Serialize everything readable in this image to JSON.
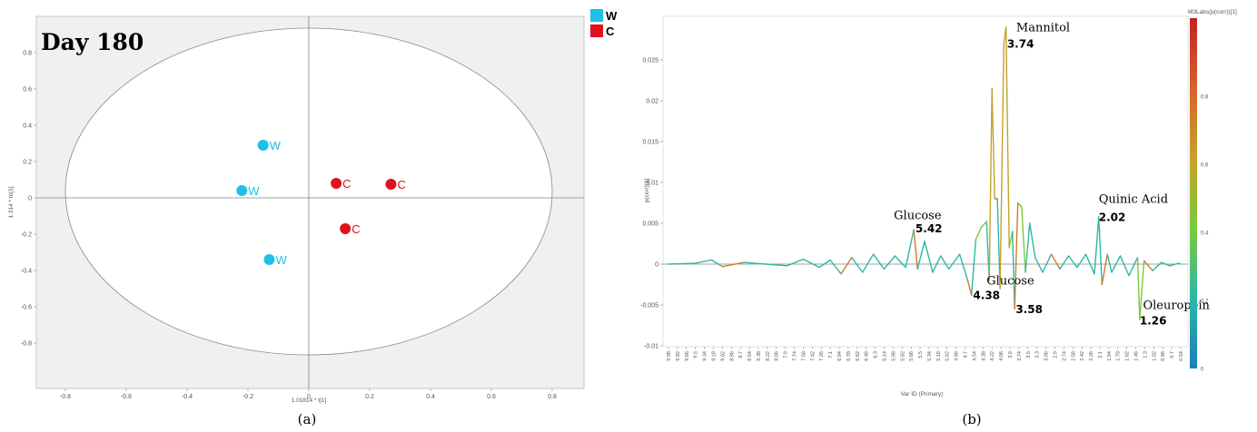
{
  "chart_data": [
    {
      "type": "scatter",
      "annotation": "Day 180",
      "xlabel": "1.01814 * t[1]",
      "ylabel": "1.314 * to[1]",
      "xlim": [
        -0.9,
        0.9
      ],
      "ylim": [
        -1.0,
        0.95
      ],
      "x_ticks": [
        "-0.8",
        "-0.6",
        "-0.4",
        "-0.2",
        "0",
        "0.2",
        "0.4",
        "0.6",
        "0.8"
      ],
      "y_ticks": [
        "0.8",
        "0.6",
        "0.4",
        "0.2",
        "0",
        "-0.2",
        "-0.4",
        "-0.6",
        "-0.8"
      ],
      "grid": false,
      "ellipse": {
        "rx": 0.8,
        "ry": 0.9
      },
      "legend": [
        {
          "name": "W",
          "color": "#1fbfe8"
        },
        {
          "name": "C",
          "color": "#e0111b"
        }
      ],
      "series": [
        {
          "name": "W",
          "color": "#1fbfe8",
          "points": [
            {
              "x": -0.15,
              "y": 0.29,
              "label": "W"
            },
            {
              "x": -0.22,
              "y": 0.04,
              "label": "W"
            },
            {
              "x": -0.13,
              "y": -0.34,
              "label": "W"
            }
          ]
        },
        {
          "name": "C",
          "color": "#e0111b",
          "points": [
            {
              "x": 0.09,
              "y": 0.08,
              "label": "C"
            },
            {
              "x": 0.27,
              "y": 0.075,
              "label": "C"
            },
            {
              "x": 0.12,
              "y": -0.17,
              "label": "C"
            }
          ]
        }
      ],
      "caption": "(a)"
    },
    {
      "type": "line",
      "xlabel": "Var ID (Primary)",
      "ylabel": "p(corr)[1]",
      "colorbar_title": "M3Labs(p(corr))[1]",
      "colorbar_ticks": [
        "0.8",
        "0.6",
        "0.4",
        "0.2",
        "0"
      ],
      "colorbar_stops": [
        "#1b7fb8",
        "#2db8a5",
        "#7bc93a",
        "#c3a32a",
        "#d9602b",
        "#c22424"
      ],
      "ylim": [
        -0.01,
        0.03
      ],
      "y_ticks": [
        "0.025",
        "0.02",
        "0.015",
        "0.01",
        "0.005",
        "0",
        "-0.005",
        "-0.01"
      ],
      "x_tick_labels": [
        "9.98",
        "9.82",
        "9.66",
        "9.5",
        "9.34",
        "9.18",
        "9.02",
        "8.86",
        "8.7",
        "8.54",
        "8.38",
        "8.22",
        "8.06",
        "7.9",
        "7.74",
        "7.58",
        "7.42",
        "7.26",
        "7.1",
        "6.94",
        "6.78",
        "6.62",
        "6.46",
        "6.3",
        "6.14",
        "5.98",
        "5.82",
        "5.66",
        "5.5",
        "5.34",
        "5.18",
        "5.02",
        "4.86",
        "4.7",
        "4.54",
        "4.38",
        "4.22",
        "4.06",
        "3.9",
        "3.74",
        "3.5",
        "3.3",
        "3.06",
        "2.9",
        "2.74",
        "2.58",
        "2.42",
        "2.26",
        "2.1",
        "1.94",
        "1.78",
        "1.62",
        "1.46",
        "1.3",
        "1.02",
        "0.86",
        "0.7",
        "0.54"
      ],
      "x_range": [
        10.0,
        0.5
      ],
      "annotations": [
        {
          "name": "Mannitol",
          "value": "3.74",
          "x": 3.74,
          "y": 0.029
        },
        {
          "name": "Glucose",
          "value": "5.42",
          "x": 5.42,
          "y": 0.0042
        },
        {
          "name": "Glucose",
          "value": "3.58",
          "x": 3.58,
          "y": -0.0055
        },
        {
          "name": "",
          "value": "4.38",
          "x": 4.38,
          "y": -0.0038
        },
        {
          "name": "Quinic Acid",
          "value": "2.02",
          "x": 2.02,
          "y": 0.0058
        },
        {
          "name": "Oleuropein",
          "value": "1.26",
          "x": 1.26,
          "y": -0.0068
        }
      ],
      "caption": "(b)"
    }
  ]
}
